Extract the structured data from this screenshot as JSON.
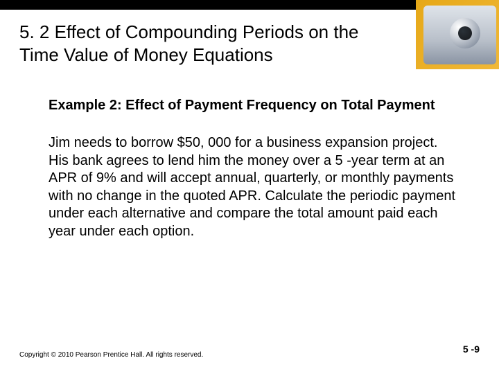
{
  "colors": {
    "accent_gold": "#e6a817",
    "top_bar": "#000000",
    "text": "#000000",
    "background": "#ffffff"
  },
  "title": "5. 2  Effect of Compounding Periods on the Time Value of Money Equations",
  "example_heading": "Example 2: Effect of Payment Frequency on Total Payment",
  "body": "Jim needs to borrow $50, 000 for a business expansion project. His bank agrees to lend him the money over a 5 -year term at an APR of 9% and will accept annual, quarterly, or monthly payments with no change in the quoted APR.  Calculate the periodic payment under each alternative and compare the total amount paid each year under each option.",
  "copyright": "Copyright © 2010 Pearson Prentice Hall. All rights reserved.",
  "page_number": "5 -9"
}
